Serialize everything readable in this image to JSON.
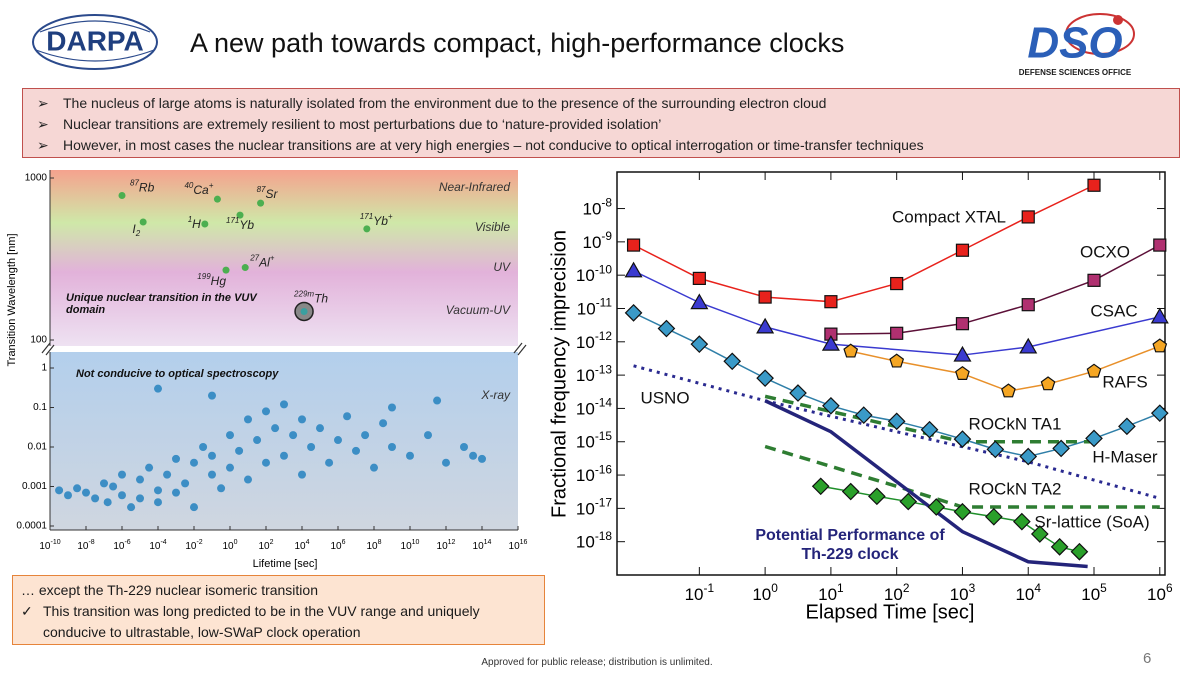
{
  "header": {
    "title": "A new path towards compact, high-performance clocks",
    "logo_left": "DARPA",
    "logo_right": "DSO",
    "logo_right_caption": "DEFENSE SCIENCES OFFICE"
  },
  "bullets": [
    "The nucleus of large atoms is naturally isolated from the environment due to the presence of the surrounding electron cloud",
    "Nuclear transitions are extremely resilient to most perturbations due to ‘nature-provided isolation’",
    "However, in most cases the nuclear transitions are at very high energies – not conducive to optical interrogation or time-transfer techniques"
  ],
  "chart_data": [
    {
      "type": "broken-axis-scatter",
      "x_label": "Lifetime [sec]",
      "y_label": "Transition Wavelength [nm]",
      "log_x": true,
      "log_y": true,
      "xlim": [
        1e-10,
        1e+16
      ],
      "xticks": [
        {
          "value": 1e-10,
          "label": "10",
          "sup": "-10"
        },
        {
          "value": 1e-08,
          "label": "10",
          "sup": "-8"
        },
        {
          "value": 1e-06,
          "label": "10",
          "sup": "-6"
        },
        {
          "value": 0.0001,
          "label": "10",
          "sup": "-4"
        },
        {
          "value": 0.01,
          "label": "10",
          "sup": "-2"
        },
        {
          "value": 1,
          "label": "10",
          "sup": "0"
        },
        {
          "value": 100,
          "label": "10",
          "sup": "2"
        },
        {
          "value": 10000,
          "label": "10",
          "sup": "4"
        },
        {
          "value": 1000000.0,
          "label": "10",
          "sup": "6"
        },
        {
          "value": 100000000.0,
          "label": "10",
          "sup": "8"
        },
        {
          "value": 10000000000.0,
          "label": "10",
          "sup": "10"
        },
        {
          "value": 1000000000000.0,
          "label": "10",
          "sup": "12"
        },
        {
          "value": 100000000000000.0,
          "label": "10",
          "sup": "14"
        },
        {
          "value": 1e+16,
          "label": "10",
          "sup": "16"
        }
      ],
      "upper": {
        "ylim": [
          100,
          1000
        ],
        "yticks": [
          100,
          1000
        ],
        "bands": [
          {
            "name": "Near-Infrared",
            "color": "#f5a28e"
          },
          {
            "name": "Visible",
            "color": "#cfe8a8"
          },
          {
            "name": "UV",
            "color": "#e2b2da"
          },
          {
            "name": "Vacuum-UV",
            "color": "#eee2f2"
          }
        ],
        "annotation": "Unique nuclear transition in the VUV domain",
        "marker_color": "#4caf50",
        "atoms": [
          {
            "mass": "87",
            "symbol": "Rb",
            "lifetime": 1e-06,
            "wavelength": 780
          },
          {
            "mass": "40",
            "symbol": "Ca",
            "charge": "+",
            "lifetime": 0.2,
            "wavelength": 740
          },
          {
            "mass": "87",
            "symbol": "Sr",
            "lifetime": 50,
            "wavelength": 700
          },
          {
            "symbol": "I",
            "sub": "2",
            "lifetime": 1.5e-05,
            "wavelength": 535
          },
          {
            "mass": "1",
            "symbol": "H",
            "lifetime": 0.04,
            "wavelength": 520
          },
          {
            "mass": "171",
            "symbol": "Yb",
            "lifetime": 3.6,
            "wavelength": 590
          },
          {
            "mass": "171",
            "symbol": "Yb",
            "charge": "+",
            "lifetime": 40000000.0,
            "wavelength": 485
          },
          {
            "mass": "27",
            "symbol": "Al",
            "charge": "+",
            "lifetime": 7,
            "wavelength": 280
          },
          {
            "mass": "199",
            "symbol": "Hg",
            "lifetime": 0.6,
            "wavelength": 270
          },
          {
            "mass": "229m",
            "symbol": "Th",
            "lifetime": 13000,
            "wavelength": 150
          }
        ]
      },
      "lower": {
        "ylim": [
          0.0001,
          1
        ],
        "yticks": [
          0.0001,
          0.001,
          0.01,
          0.1,
          1
        ],
        "band": {
          "name": "X-ray",
          "color": "#b3cfec"
        },
        "annotation": "Not conducive to optical spectroscopy",
        "color": "#2e86c1",
        "x": [
          3.2e-10,
          1e-09,
          3.2e-09,
          1e-08,
          3.2e-08,
          1e-07,
          1.6e-07,
          3.2e-07,
          1e-06,
          1e-06,
          3.2e-06,
          1e-05,
          1e-05,
          3.2e-05,
          0.0001,
          0.0001,
          0.00032,
          0.001,
          0.001,
          0.0032,
          0.01,
          0.01,
          0.032,
          0.1,
          0.1,
          0.32,
          1,
          1,
          3.2,
          10,
          10,
          32,
          100,
          100,
          320,
          1000,
          1000,
          3200,
          10000.0,
          10000.0,
          32000.0,
          100000.0,
          320000.0,
          1000000.0,
          3200000.0,
          10000000.0,
          32000000.0,
          100000000.0,
          320000000.0,
          1000000000.0,
          10000000000.0,
          100000000000.0,
          1000000000000.0,
          10000000000000.0,
          100000000000000.0,
          0.0001,
          0.1,
          1000000000.0,
          320000000000.0,
          32000000000000.0
        ],
        "values": [
          0.0008,
          0.0006,
          0.0009,
          0.0007,
          0.0005,
          0.0012,
          0.0004,
          0.001,
          0.0006,
          0.002,
          0.0003,
          0.0015,
          0.0005,
          0.003,
          0.0008,
          0.0004,
          0.002,
          0.005,
          0.0007,
          0.0012,
          0.004,
          0.0003,
          0.01,
          0.002,
          0.006,
          0.0009,
          0.02,
          0.003,
          0.008,
          0.05,
          0.0015,
          0.015,
          0.08,
          0.004,
          0.03,
          0.12,
          0.006,
          0.02,
          0.05,
          0.002,
          0.01,
          0.03,
          0.004,
          0.015,
          0.06,
          0.008,
          0.02,
          0.003,
          0.04,
          0.01,
          0.006,
          0.02,
          0.004,
          0.01,
          0.005,
          0.3,
          0.2,
          0.1,
          0.15,
          0.006
        ]
      }
    },
    {
      "type": "line",
      "x_label": "Elapsed Time [sec]",
      "y_label": "Fractional frequency imprecision",
      "log_x": true,
      "log_y": true,
      "xlim": [
        0.0056,
        1200000
      ],
      "ylim": [
        1e-19,
        1.25e-07
      ],
      "xticks": [
        {
          "value": 0.1,
          "label": "10",
          "sup": "-1"
        },
        {
          "value": 1,
          "label": "10",
          "sup": "0"
        },
        {
          "value": 10,
          "label": "10",
          "sup": "1"
        },
        {
          "value": 100,
          "label": "10",
          "sup": "2"
        },
        {
          "value": 1000,
          "label": "10",
          "sup": "3"
        },
        {
          "value": 10000,
          "label": "10",
          "sup": "4"
        },
        {
          "value": 100000,
          "label": "10",
          "sup": "5"
        },
        {
          "value": 1000000,
          "label": "10",
          "sup": "6"
        }
      ],
      "yticks": [
        {
          "value": 1e-18,
          "label": "10",
          "sup": "-18"
        },
        {
          "value": 1e-17,
          "label": "10",
          "sup": "-17"
        },
        {
          "value": 1e-16,
          "label": "10",
          "sup": "-16"
        },
        {
          "value": 1e-15,
          "label": "10",
          "sup": "-15"
        },
        {
          "value": 1e-14,
          "label": "10",
          "sup": "-14"
        },
        {
          "value": 1e-13,
          "label": "10",
          "sup": "-13"
        },
        {
          "value": 1e-12,
          "label": "10",
          "sup": "-12"
        },
        {
          "value": 1e-11,
          "label": "10",
          "sup": "-11"
        },
        {
          "value": 1e-10,
          "label": "10",
          "sup": "-10"
        },
        {
          "value": 1e-09,
          "label": "10",
          "sup": "-9"
        },
        {
          "value": 1e-08,
          "label": "10",
          "sup": "-8"
        }
      ],
      "series": [
        {
          "name": "Compact XTAL",
          "color": "#e8221c",
          "marker": "square",
          "marker_color": "#e8221c",
          "line": "solid",
          "x": [
            0.01,
            0.1,
            1,
            10,
            100,
            1000,
            10000,
            100000
          ],
          "values": [
            8e-10,
            8e-11,
            2.2e-11,
            1.6e-11,
            5.6e-11,
            5.6e-10,
            5.6e-09,
            5e-08
          ]
        },
        {
          "name": "OCXO",
          "color": "#5c1038",
          "marker": "square",
          "marker_color": "#b03070",
          "line": "solid",
          "x": [
            10,
            100,
            1000,
            10000,
            100000,
            1000000
          ],
          "values": [
            1.7e-12,
            1.8e-12,
            3.5e-12,
            1.3e-11,
            7e-11,
            8e-10
          ]
        },
        {
          "name": "CSAC",
          "color": "#3a3ad0",
          "marker": "triangle",
          "marker_color": "#3a3ad0",
          "line": "solid",
          "x": [
            0.01,
            0.1,
            1,
            10,
            1000,
            10000,
            1000000
          ],
          "values": [
            1.35e-10,
            1.5e-11,
            2.8e-12,
            8.5e-13,
            4e-13,
            7e-13,
            5.6e-12
          ]
        },
        {
          "name": "RAFS",
          "color": "#e8902a",
          "marker": "pentagon",
          "marker_color": "#f5a623",
          "line": "solid",
          "x": [
            20,
            100,
            1000,
            5000,
            20000,
            100000,
            1000000
          ],
          "values": [
            5.2e-13,
            2.6e-13,
            1.1e-13,
            3.3e-14,
            5.4e-14,
            1.3e-13,
            7.4e-13
          ]
        },
        {
          "name": "H-Maser",
          "color": "#2f7fa8",
          "marker": "diamond",
          "marker_color": "#3a9ac8",
          "line": "solid",
          "x": [
            0.01,
            0.0316,
            0.1,
            0.316,
            1,
            3.16,
            10,
            31.6,
            100,
            316,
            1000,
            3162,
            10000,
            31623,
            100000,
            316228,
            1000000
          ],
          "values": [
            7.4e-12,
            2.5e-12,
            8.5e-13,
            2.6e-13,
            8.1e-14,
            2.9e-14,
            1.2e-14,
            6.3e-15,
            4.1e-15,
            2.3e-15,
            1.2e-15,
            5.9e-16,
            3.6e-16,
            6.3e-16,
            1.26e-15,
            2.9e-15,
            7.2e-15
          ]
        },
        {
          "name": "USNO",
          "color": "#2a2a90",
          "line": "dotted",
          "x": [
            0.01,
            1,
            100,
            10000,
            1000000
          ],
          "values": [
            1.9e-13,
            1.7e-14,
            2e-15,
            2.5e-16,
            2e-17
          ]
        },
        {
          "name": "ROCkN TA1",
          "color": "#2e7d32",
          "line": "dashed",
          "x": [
            1,
            1000,
            100000
          ],
          "values": [
            2.3e-14,
            1e-15,
            1e-15
          ]
        },
        {
          "name": "ROCkN TA2",
          "color": "#2e7d32",
          "line": "dashed",
          "x": [
            1,
            100,
            1000,
            1000000
          ],
          "values": [
            7.2e-16,
            4.6e-17,
            1.1e-17,
            1.1e-17
          ]
        },
        {
          "name": "Sr-lattice (SoA)",
          "color": "#1f8f2a",
          "marker": "diamond",
          "marker_color": "#2aa02a",
          "line": "solid",
          "x": [
            7,
            20,
            50,
            150,
            400,
            1000,
            3000,
            8000,
            15000,
            30000,
            60000
          ],
          "values": [
            4.6e-17,
            3.2e-17,
            2.3e-17,
            1.6e-17,
            1.1e-17,
            7.9e-18,
            5.6e-18,
            4e-18,
            1.7e-18,
            7e-19,
            5e-19
          ]
        },
        {
          "name": "Potential Performance of Th-229 clock",
          "color": "#24247a",
          "line": "thick",
          "x": [
            1,
            10,
            100,
            1000,
            10000,
            80000
          ],
          "values": [
            1.7e-14,
            2e-15,
            6.3e-17,
            2e-18,
            2.5e-19,
            1.8e-19
          ]
        }
      ]
    }
  ],
  "callout": {
    "heading": "… except the Th-229 nuclear isomeric transition",
    "items": [
      "This transition was long predicted to be in the VUV range and uniquely conducive to ultrastable, low-SWaP clock operation"
    ]
  },
  "footer": "Approved for public release; distribution is unlimited.",
  "page_number": "6"
}
